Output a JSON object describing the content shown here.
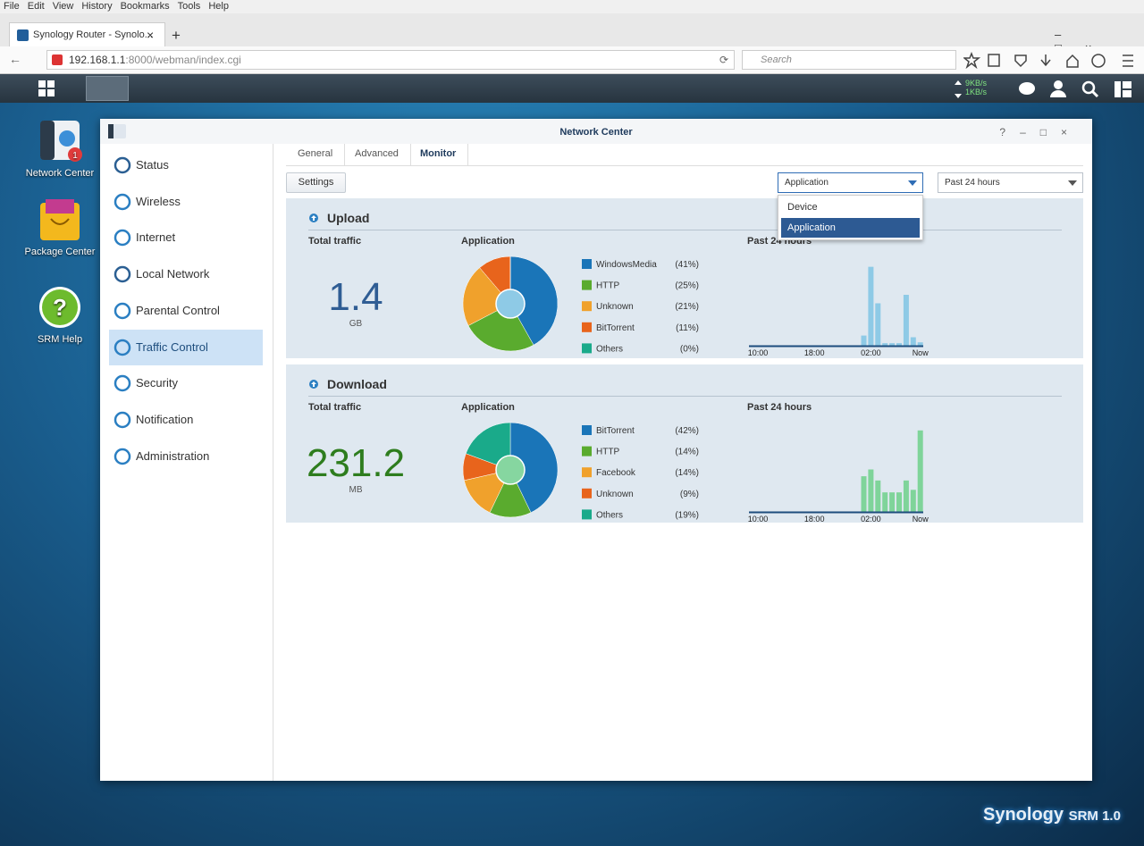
{
  "browser": {
    "menu": [
      "File",
      "Edit",
      "View",
      "History",
      "Bookmarks",
      "Tools",
      "Help"
    ],
    "tab_title": "Synology Router - Synolo...",
    "url_host": "192.168.1.1",
    "url_path": ":8000/webman/index.cgi",
    "search_placeholder": "Search"
  },
  "taskbar": {
    "upload_speed": "9KB/s",
    "download_speed": "1KB/s"
  },
  "desktop": {
    "icons": [
      {
        "label": "Network Center",
        "badge": "1"
      },
      {
        "label": "Package Center"
      },
      {
        "label": "SRM Help"
      }
    ],
    "brand": "Synology",
    "product": "SRM 1.0"
  },
  "window": {
    "title": "Network Center",
    "sidebar": [
      "Status",
      "Wireless",
      "Internet",
      "Local Network",
      "Parental Control",
      "Traffic Control",
      "Security",
      "Notification",
      "Administration"
    ],
    "tabs": [
      "General",
      "Advanced",
      "Monitor"
    ],
    "settings_button": "Settings",
    "view_select": "Application",
    "view_options": [
      "Device",
      "Application"
    ],
    "period_select": "Past 24 hours"
  },
  "sections": [
    {
      "title": "Upload",
      "total_label": "Total traffic",
      "total_value": 1.4,
      "total_unit": "GB",
      "total_color": "#2f5d94",
      "chart_data": [
        {
          "type": "pie",
          "title": "Application",
          "categories": [
            "WindowsMedia",
            "HTTP",
            "Unknown",
            "BitTorrent",
            "Others"
          ],
          "values": [
            41,
            25,
            21,
            11,
            0
          ],
          "value_labels": [
            "(41%)",
            "(25%)",
            "(21%)",
            "(11%)",
            "(0%)"
          ],
          "colors": [
            "#1a75b8",
            "#5aab2e",
            "#f0a12c",
            "#e8641c",
            "#1aaa8a"
          ],
          "hole_color": "#8ecae6"
        },
        {
          "type": "bar",
          "title": "Past 24 hours",
          "categories": [
            "10:00",
            null,
            null,
            null,
            null,
            null,
            null,
            null,
            "18:00",
            null,
            null,
            null,
            null,
            null,
            null,
            null,
            "02:00",
            null,
            null,
            null,
            null,
            null,
            null,
            "Now"
          ],
          "values": [
            0,
            0,
            0,
            0,
            0,
            0,
            0,
            0,
            0,
            0,
            0,
            0,
            0,
            0,
            0,
            12,
            93,
            50,
            3,
            3,
            3,
            60,
            10,
            4
          ],
          "color": "#8ecae6",
          "ylim": [
            0,
            100
          ]
        }
      ]
    },
    {
      "title": "Download",
      "total_label": "Total traffic",
      "total_value": 231.2,
      "total_unit": "MB",
      "total_color": "#2e7d1e",
      "chart_data": [
        {
          "type": "pie",
          "title": "Application",
          "categories": [
            "BitTorrent",
            "HTTP",
            "Facebook",
            "Unknown",
            "Others"
          ],
          "values": [
            42,
            14,
            14,
            9,
            19
          ],
          "value_labels": [
            "(42%)",
            "(14%)",
            "(14%)",
            "(9%)",
            "(19%)"
          ],
          "colors": [
            "#1a75b8",
            "#5aab2e",
            "#f0a12c",
            "#e8641c",
            "#1aaa8a"
          ],
          "hole_color": "#86d6a0"
        },
        {
          "type": "bar",
          "title": "Past 24 hours",
          "categories": [
            "10:00",
            null,
            null,
            null,
            null,
            null,
            null,
            null,
            "18:00",
            null,
            null,
            null,
            null,
            null,
            null,
            null,
            "02:00",
            null,
            null,
            null,
            null,
            null,
            null,
            "Now"
          ],
          "values": [
            0,
            0,
            0,
            0,
            0,
            0,
            0,
            0,
            0,
            0,
            0,
            0,
            0,
            0,
            0,
            42,
            50,
            37,
            23,
            23,
            23,
            37,
            26,
            96
          ],
          "color": "#7fd49a",
          "ylim": [
            0,
            100
          ]
        }
      ]
    }
  ]
}
